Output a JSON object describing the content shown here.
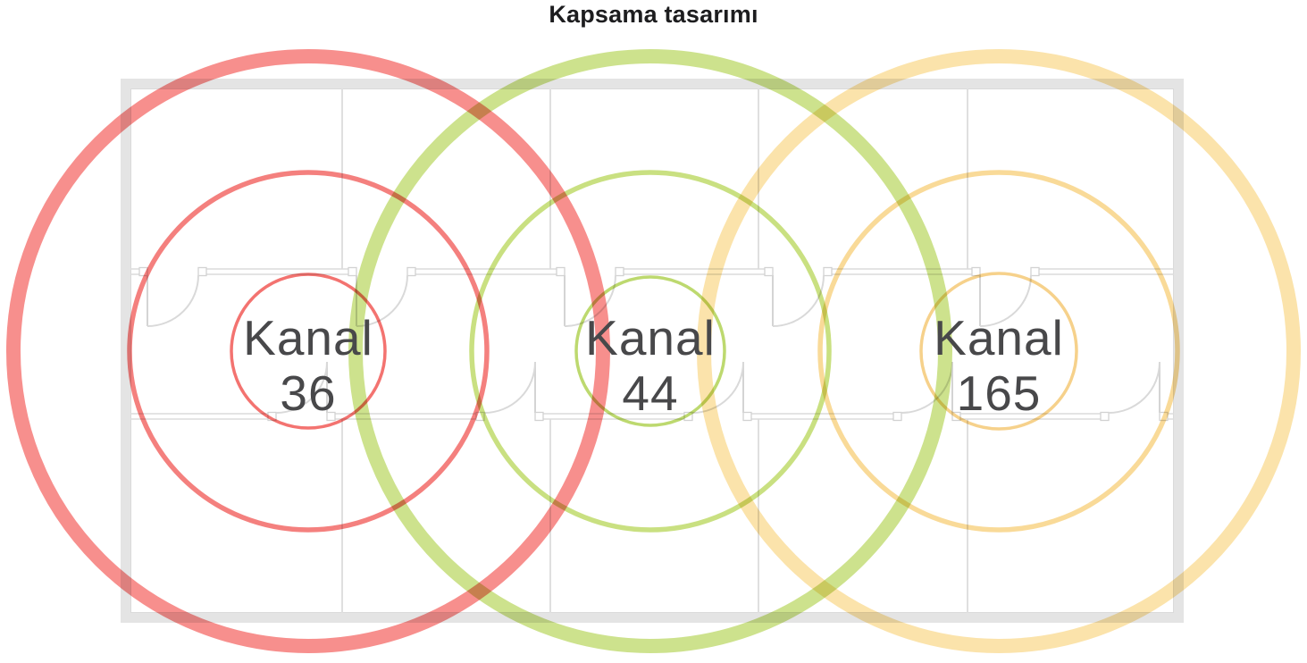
{
  "title": "Kapsama tasarımı",
  "title_color": "#1d1d1f",
  "label_color": "#48484a",
  "channels": [
    {
      "name": "Kanal 36",
      "label": "Kanal",
      "number": "36",
      "colors": {
        "outer": "#f78f8d",
        "middle": "#f4807e",
        "inner": "#f37370"
      }
    },
    {
      "name": "Kanal 44",
      "label": "Kanal",
      "number": "44",
      "colors": {
        "outer": "#cde28d",
        "middle": "#c9e081",
        "inner": "#bdd96f"
      }
    },
    {
      "name": "Kanal 165",
      "label": "Kanal",
      "number": "165",
      "colors": {
        "outer": "#fbe3ab",
        "middle": "#f9da98",
        "inner": "#f6d18b"
      }
    }
  ],
  "floor_plan": {
    "wall_color": "#e4e4e4",
    "inner_line_color": "#dcdcdc",
    "door_color": "#d9d9d9"
  }
}
